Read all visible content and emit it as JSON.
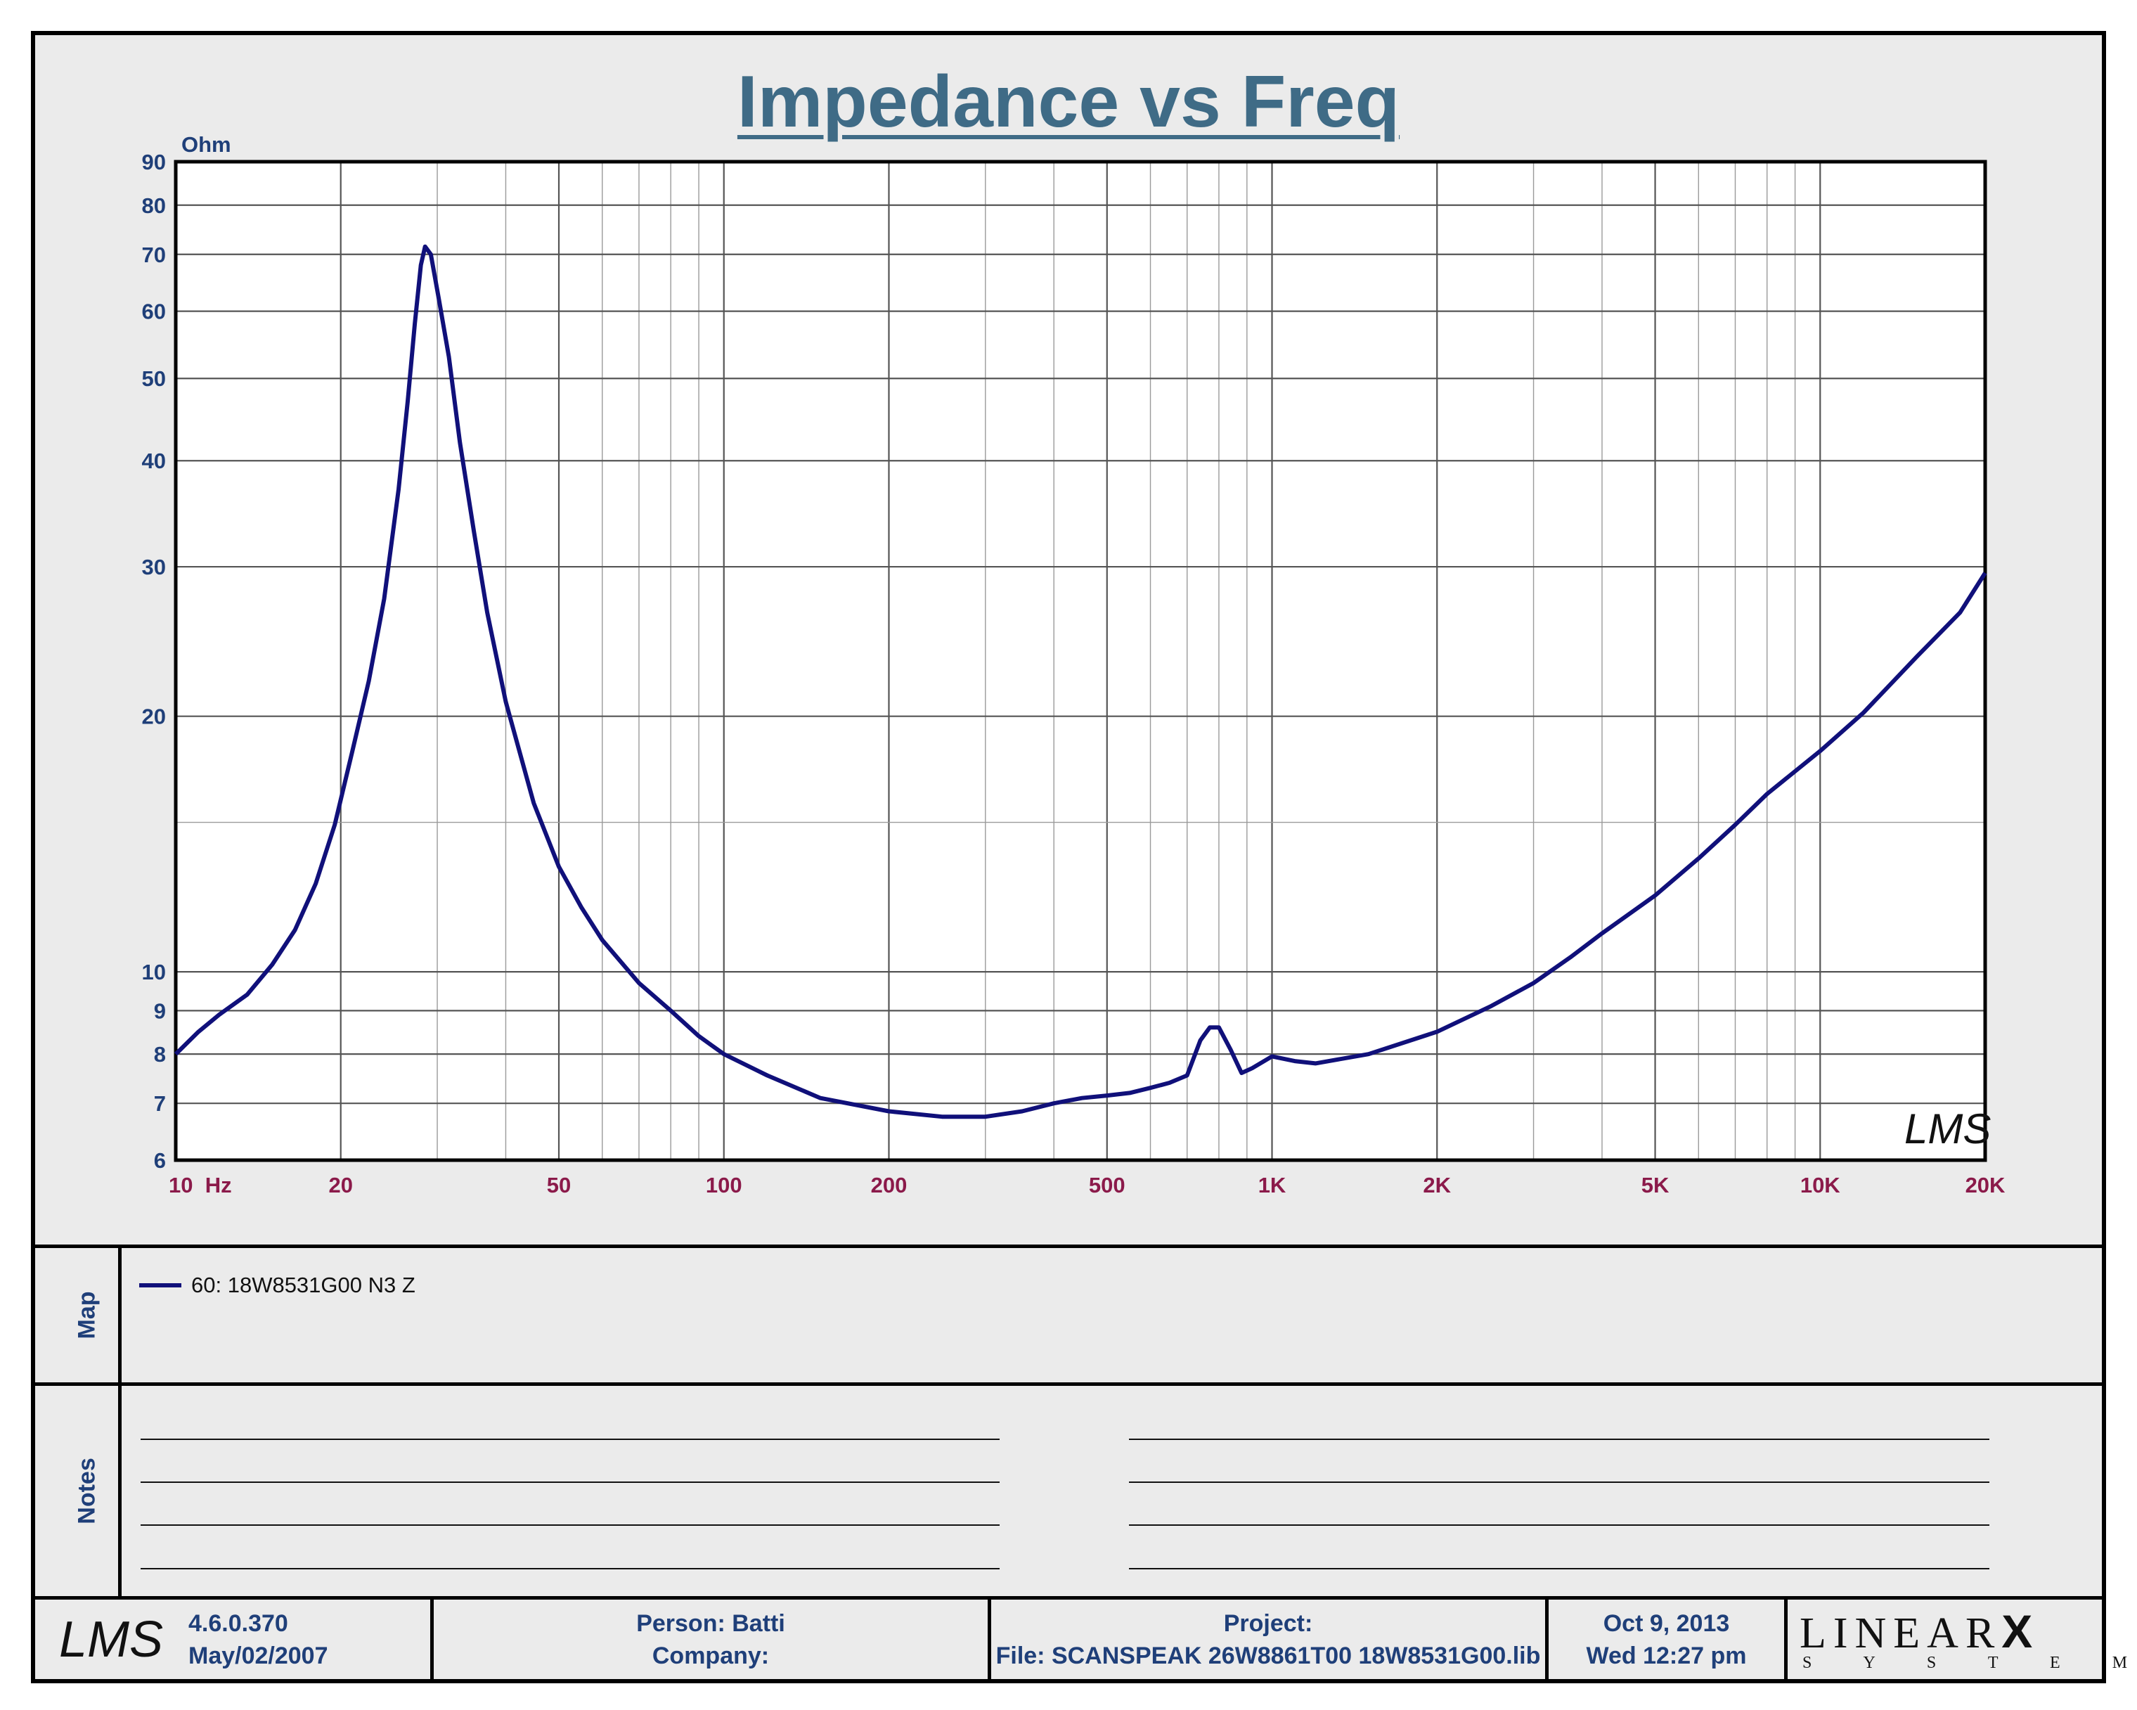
{
  "header": {
    "title": "Impedance vs Freq"
  },
  "chart_data": {
    "type": "line",
    "title": "Impedance vs Freq",
    "ylabel": "Ohm",
    "xlabel": "Hz",
    "x_scale": "log",
    "y_scale": "log",
    "xlim": [
      10,
      20000
    ],
    "ylim": [
      6,
      90
    ],
    "grid": true,
    "x_ticks": [
      {
        "v": 10,
        "label": "10  Hz"
      },
      {
        "v": 20,
        "label": "20"
      },
      {
        "v": 50,
        "label": "50"
      },
      {
        "v": 100,
        "label": "100"
      },
      {
        "v": 200,
        "label": "200"
      },
      {
        "v": 500,
        "label": "500"
      },
      {
        "v": 1000,
        "label": "1K"
      },
      {
        "v": 2000,
        "label": "2K"
      },
      {
        "v": 5000,
        "label": "5K"
      },
      {
        "v": 10000,
        "label": "10K"
      },
      {
        "v": 20000,
        "label": "20K"
      }
    ],
    "y_ticks": [
      {
        "v": 6,
        "label": "6"
      },
      {
        "v": 7,
        "label": "7"
      },
      {
        "v": 8,
        "label": "8"
      },
      {
        "v": 9,
        "label": "9"
      },
      {
        "v": 10,
        "label": "10"
      },
      {
        "v": 20,
        "label": "20"
      },
      {
        "v": 30,
        "label": "30"
      },
      {
        "v": 40,
        "label": "40"
      },
      {
        "v": 50,
        "label": "50"
      },
      {
        "v": 60,
        "label": "60"
      },
      {
        "v": 70,
        "label": "70"
      },
      {
        "v": 80,
        "label": "80"
      },
      {
        "v": 90,
        "label": "90"
      }
    ],
    "series": [
      {
        "name": "60: 18W8531G00 N3 Z",
        "color": "#10107a",
        "points": [
          [
            10,
            8.0
          ],
          [
            11,
            8.5
          ],
          [
            12,
            8.9
          ],
          [
            13.5,
            9.4
          ],
          [
            15,
            10.2
          ],
          [
            16.5,
            11.2
          ],
          [
            18,
            12.7
          ],
          [
            19.5,
            14.9
          ],
          [
            21,
            18.2
          ],
          [
            22.5,
            22
          ],
          [
            24,
            27.5
          ],
          [
            25.5,
            37
          ],
          [
            26.5,
            47
          ],
          [
            27.3,
            58
          ],
          [
            28,
            68
          ],
          [
            28.5,
            71.5
          ],
          [
            29.2,
            70
          ],
          [
            30.2,
            62
          ],
          [
            31.5,
            53
          ],
          [
            33,
            42
          ],
          [
            35,
            33
          ],
          [
            37,
            26.5
          ],
          [
            40,
            20.8
          ],
          [
            45,
            15.8
          ],
          [
            50,
            13.3
          ],
          [
            55,
            11.9
          ],
          [
            60,
            10.9
          ],
          [
            70,
            9.7
          ],
          [
            80,
            9.0
          ],
          [
            90,
            8.4
          ],
          [
            100,
            8.0
          ],
          [
            120,
            7.55
          ],
          [
            150,
            7.1
          ],
          [
            200,
            6.85
          ],
          [
            250,
            6.75
          ],
          [
            300,
            6.75
          ],
          [
            350,
            6.85
          ],
          [
            400,
            7.0
          ],
          [
            450,
            7.1
          ],
          [
            500,
            7.15
          ],
          [
            550,
            7.2
          ],
          [
            600,
            7.3
          ],
          [
            650,
            7.4
          ],
          [
            700,
            7.55
          ],
          [
            740,
            8.3
          ],
          [
            770,
            8.6
          ],
          [
            800,
            8.6
          ],
          [
            840,
            8.1
          ],
          [
            880,
            7.6
          ],
          [
            920,
            7.7
          ],
          [
            1000,
            7.95
          ],
          [
            1100,
            7.85
          ],
          [
            1200,
            7.8
          ],
          [
            1500,
            8.0
          ],
          [
            2000,
            8.5
          ],
          [
            2500,
            9.1
          ],
          [
            3000,
            9.7
          ],
          [
            3500,
            10.4
          ],
          [
            4000,
            11.1
          ],
          [
            5000,
            12.3
          ],
          [
            6000,
            13.6
          ],
          [
            7000,
            14.9
          ],
          [
            8000,
            16.2
          ],
          [
            10000,
            18.2
          ],
          [
            12000,
            20.2
          ],
          [
            15000,
            23.5
          ],
          [
            18000,
            26.5
          ],
          [
            20000,
            29.5
          ]
        ]
      }
    ],
    "watermark": "LMS"
  },
  "legend": {
    "section_label": "Map",
    "entry": "60: 18W8531G00 N3 Z"
  },
  "notes": {
    "section_label": "Notes"
  },
  "footer": {
    "logo": "LMS",
    "version": "4.6.0.370",
    "version_date": "May/02/2007",
    "person": "Person: Batti",
    "company": "Company:",
    "project": "Project:",
    "file": "File: SCANSPEAK 26W8861T00 18W8531G00.lib",
    "date": "Oct  9, 2013",
    "time": "Wed 12:27 pm",
    "brand": "LINEAR",
    "brand_mark": "X",
    "brand_sub": "S Y S T E M S"
  },
  "colors": {
    "curve": "#10107a",
    "title": "#3f6b86",
    "y_labels": "#1f3f79",
    "x_labels": "#8b1a4a",
    "panel": "#ebebeb"
  }
}
